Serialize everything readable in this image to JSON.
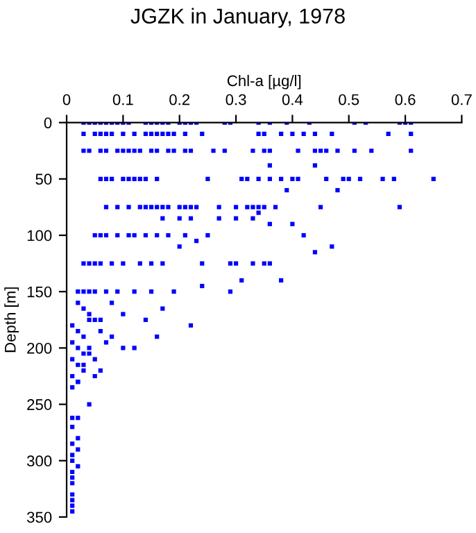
{
  "chart_data": {
    "type": "scatter",
    "title": "JGZK in January, 1978",
    "xlabel": "Chl-a [µg/l]",
    "ylabel": "Depth [m]",
    "xlim": [
      0,
      0.7
    ],
    "xticks": [
      0,
      0.1,
      0.2,
      0.3,
      0.4,
      0.5,
      0.6,
      0.7
    ],
    "ylim": [
      350,
      0
    ],
    "yticks": [
      0,
      50,
      100,
      150,
      200,
      250,
      300,
      350
    ],
    "grid": false,
    "marker": "square",
    "legend": false,
    "series": [
      {
        "color": "#0000ff",
        "x": [
          0.03,
          0.04,
          0.05,
          0.06,
          0.07,
          0.08,
          0.09,
          0.1,
          0.11,
          0.14,
          0.15,
          0.16,
          0.17,
          0.18,
          0.2,
          0.21,
          0.22,
          0.23,
          0.28,
          0.29,
          0.34,
          0.36,
          0.39,
          0.43,
          0.51,
          0.53,
          0.59,
          0.6,
          0.61,
          0.03,
          0.05,
          0.06,
          0.07,
          0.08,
          0.1,
          0.12,
          0.14,
          0.15,
          0.16,
          0.17,
          0.18,
          0.19,
          0.21,
          0.24,
          0.34,
          0.35,
          0.38,
          0.4,
          0.42,
          0.44,
          0.47,
          0.57,
          0.61,
          0.03,
          0.04,
          0.06,
          0.07,
          0.09,
          0.1,
          0.11,
          0.12,
          0.13,
          0.15,
          0.16,
          0.18,
          0.19,
          0.21,
          0.22,
          0.26,
          0.28,
          0.33,
          0.35,
          0.36,
          0.41,
          0.44,
          0.45,
          0.46,
          0.48,
          0.51,
          0.54,
          0.61,
          0.36,
          0.44,
          0.06,
          0.07,
          0.08,
          0.1,
          0.11,
          0.12,
          0.13,
          0.14,
          0.16,
          0.25,
          0.31,
          0.32,
          0.34,
          0.36,
          0.38,
          0.4,
          0.41,
          0.46,
          0.49,
          0.5,
          0.52,
          0.56,
          0.58,
          0.65,
          0.39,
          0.48,
          0.07,
          0.09,
          0.11,
          0.13,
          0.14,
          0.15,
          0.16,
          0.17,
          0.18,
          0.2,
          0.21,
          0.22,
          0.23,
          0.27,
          0.3,
          0.32,
          0.33,
          0.34,
          0.35,
          0.37,
          0.45,
          0.59,
          0.17,
          0.2,
          0.22,
          0.27,
          0.3,
          0.33,
          0.34,
          0.36,
          0.4,
          0.42,
          0.44,
          0.47,
          0.05,
          0.06,
          0.07,
          0.09,
          0.11,
          0.12,
          0.14,
          0.16,
          0.18,
          0.21,
          0.23,
          0.25,
          0.29,
          0.35,
          0.03,
          0.04,
          0.05,
          0.06,
          0.08,
          0.1,
          0.13,
          0.15,
          0.17,
          0.2,
          0.24,
          0.3,
          0.33,
          0.36,
          0.38,
          0.02,
          0.03,
          0.04,
          0.05,
          0.07,
          0.09,
          0.12,
          0.15,
          0.19,
          0.24,
          0.29,
          0.31,
          0.02,
          0.03,
          0.04,
          0.05,
          0.06,
          0.08,
          0.1,
          0.14,
          0.17,
          0.22,
          0.01,
          0.02,
          0.03,
          0.04,
          0.06,
          0.08,
          0.12,
          0.16,
          0.01,
          0.02,
          0.03,
          0.04,
          0.05,
          0.07,
          0.1,
          0.01,
          0.02,
          0.03,
          0.04,
          0.06,
          0.01,
          0.02,
          0.03,
          0.05,
          0.01,
          0.02,
          0.04,
          0.01,
          0.02,
          0.01,
          0.02,
          0.01,
          0.02,
          0.01,
          0.01,
          0.02,
          0.01,
          0.01,
          0.01,
          0.01,
          0.01,
          0.01,
          0.01
        ],
        "values": [
          0,
          0,
          0,
          0,
          0,
          0,
          0,
          0,
          0,
          0,
          0,
          0,
          0,
          0,
          0,
          0,
          0,
          0,
          0,
          0,
          0,
          0,
          0,
          0,
          0,
          0,
          0,
          0,
          0,
          10,
          10,
          10,
          10,
          10,
          10,
          10,
          10,
          10,
          10,
          10,
          10,
          10,
          10,
          10,
          10,
          10,
          10,
          10,
          10,
          10,
          10,
          10,
          10,
          25,
          25,
          25,
          25,
          25,
          25,
          25,
          25,
          25,
          25,
          25,
          25,
          25,
          25,
          25,
          25,
          25,
          25,
          25,
          25,
          25,
          25,
          25,
          25,
          25,
          25,
          25,
          25,
          38,
          38,
          50,
          50,
          50,
          50,
          50,
          50,
          50,
          50,
          50,
          50,
          50,
          50,
          50,
          50,
          50,
          50,
          50,
          50,
          50,
          50,
          50,
          50,
          50,
          50,
          60,
          60,
          75,
          75,
          75,
          75,
          75,
          75,
          75,
          75,
          75,
          75,
          75,
          75,
          75,
          75,
          75,
          75,
          75,
          75,
          75,
          75,
          75,
          75,
          85,
          85,
          85,
          85,
          85,
          85,
          80,
          90,
          90,
          100,
          115,
          110,
          100,
          100,
          100,
          100,
          100,
          100,
          100,
          100,
          100,
          100,
          105,
          100,
          125,
          125,
          125,
          125,
          125,
          125,
          125,
          125,
          125,
          125,
          125,
          110,
          125,
          125,
          125,
          125,
          140,
          150,
          150,
          150,
          150,
          150,
          150,
          150,
          150,
          150,
          145,
          150,
          140,
          160,
          165,
          170,
          175,
          175,
          160,
          170,
          175,
          165,
          180,
          180,
          185,
          190,
          175,
          185,
          190,
          200,
          190,
          195,
          200,
          205,
          200,
          210,
          195,
          200,
          210,
          215,
          220,
          205,
          220,
          225,
          230,
          215,
          225,
          235,
          230,
          250,
          262,
          262,
          270,
          280,
          285,
          290,
          295,
          300,
          305,
          310,
          315,
          320,
          330,
          335,
          340,
          345
        ]
      }
    ]
  }
}
